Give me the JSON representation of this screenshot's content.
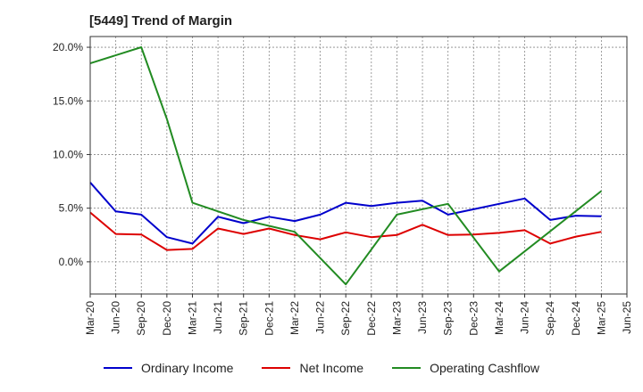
{
  "title": "[5449]  Trend of Margin",
  "chart_data": {
    "type": "line",
    "title": "[5449]  Trend of Margin",
    "xlabel": "",
    "ylabel": "",
    "categories": [
      "Mar-20",
      "Jun-20",
      "Sep-20",
      "Dec-20",
      "Mar-21",
      "Jun-21",
      "Sep-21",
      "Dec-21",
      "Mar-22",
      "Jun-22",
      "Sep-22",
      "Dec-22",
      "Mar-23",
      "Jun-23",
      "Sep-23",
      "Dec-23",
      "Mar-24",
      "Jun-24",
      "Sep-24",
      "Dec-24",
      "Mar-25",
      "Jun-25"
    ],
    "yticks": [
      0,
      5,
      10,
      15,
      20
    ],
    "ytick_labels": [
      "0.0%",
      "5.0%",
      "10.0%",
      "15.0%",
      "20.0%"
    ],
    "ylim": [
      -3,
      21
    ],
    "grid": true,
    "legend_position": "bottom",
    "series": [
      {
        "name": "Ordinary Income",
        "color": "#0000cc",
        "values": [
          7.4,
          4.7,
          4.4,
          2.3,
          1.7,
          4.2,
          3.6,
          4.2,
          3.8,
          4.4,
          5.5,
          5.2,
          5.5,
          5.7,
          4.4,
          4.9,
          5.4,
          5.9,
          3.9,
          4.3,
          4.25,
          null
        ]
      },
      {
        "name": "Net Income",
        "color": "#dd0000",
        "values": [
          4.6,
          2.6,
          2.55,
          1.1,
          1.2,
          3.1,
          2.6,
          3.1,
          2.5,
          2.1,
          2.75,
          2.3,
          2.5,
          3.45,
          2.5,
          2.55,
          2.7,
          2.95,
          1.7,
          2.35,
          2.8,
          null
        ]
      },
      {
        "name": "Operating Cashflow",
        "color": "#228b22",
        "values": [
          18.5,
          null,
          20.0,
          13.3,
          5.5,
          null,
          3.9,
          null,
          2.8,
          null,
          -2.1,
          null,
          4.4,
          null,
          5.4,
          null,
          -0.9,
          null,
          null,
          null,
          6.6,
          null
        ]
      }
    ]
  }
}
